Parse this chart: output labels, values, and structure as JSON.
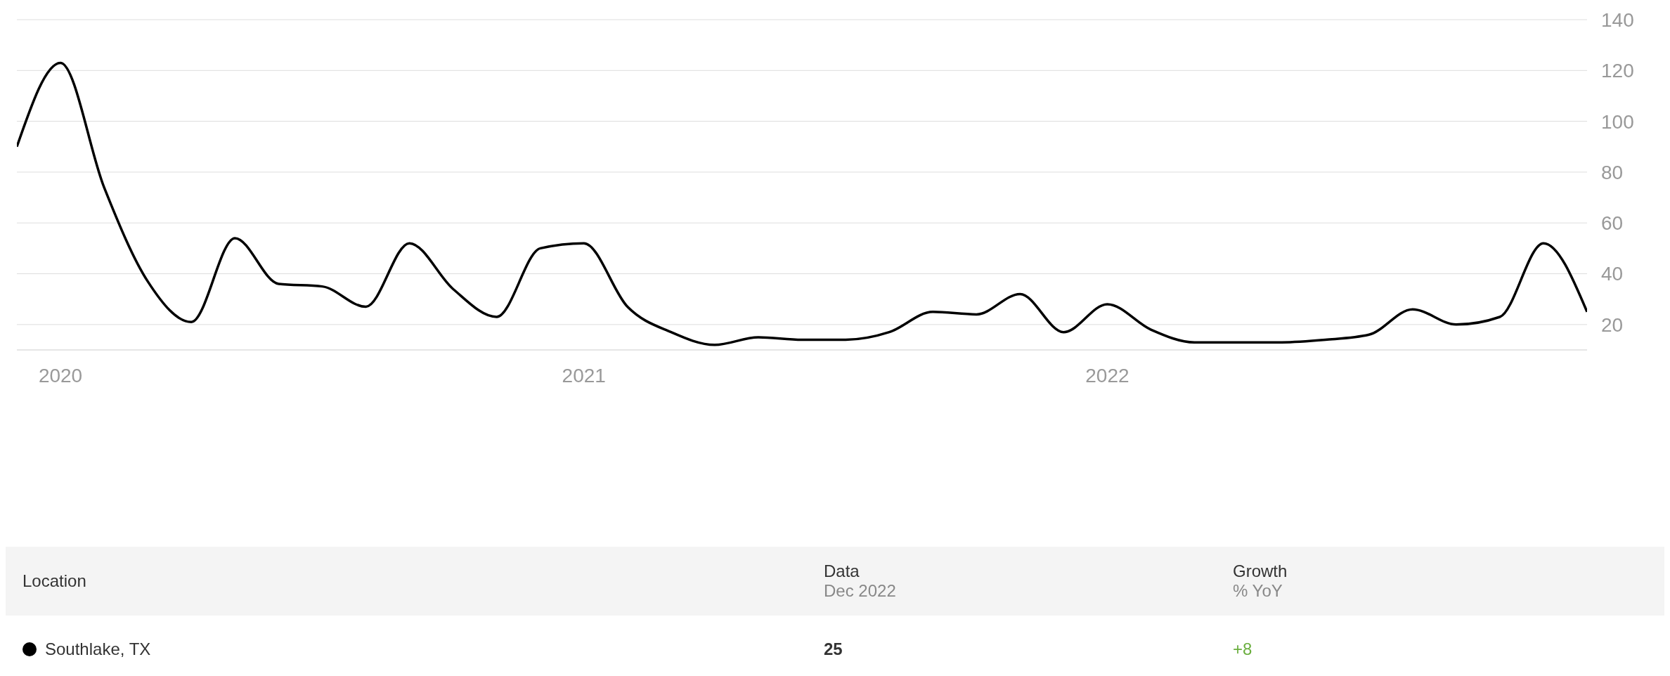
{
  "chart_data": {
    "type": "line",
    "x": [
      "2019-12",
      "2020-01",
      "2020-02",
      "2020-03",
      "2020-04",
      "2020-05",
      "2020-06",
      "2020-07",
      "2020-08",
      "2020-09",
      "2020-10",
      "2020-11",
      "2020-12",
      "2021-01",
      "2021-02",
      "2021-03",
      "2021-04",
      "2021-05",
      "2021-06",
      "2021-07",
      "2021-08",
      "2021-09",
      "2021-10",
      "2021-11",
      "2021-12",
      "2022-01",
      "2022-02",
      "2022-03",
      "2022-04",
      "2022-05",
      "2022-06",
      "2022-07",
      "2022-08",
      "2022-09",
      "2022-10",
      "2022-11",
      "2022-12"
    ],
    "series": [
      {
        "name": "Southlake, TX",
        "color": "#000000",
        "values": [
          90,
          123,
          74,
          37,
          21,
          54,
          36,
          35,
          27,
          52,
          34,
          23,
          50,
          52,
          27,
          17,
          12,
          15,
          14,
          14,
          17,
          25,
          24,
          32,
          17,
          28,
          18,
          13,
          13,
          13,
          14,
          16,
          26,
          20,
          23,
          52,
          25
        ]
      }
    ],
    "xlim": [
      "2019-12",
      "2022-12"
    ],
    "xticks": [
      "2020",
      "2021",
      "2022"
    ],
    "ylim": [
      10,
      140
    ],
    "yticks": [
      20,
      40,
      60,
      80,
      100,
      120,
      140
    ],
    "grid": "y",
    "legend": "bottom",
    "marker": "none",
    "line_style": "solid",
    "annotations": [
      "Location",
      "Data",
      "Dec 2022",
      "Growth",
      "% YoY",
      "+8",
      "25"
    ]
  }
}
